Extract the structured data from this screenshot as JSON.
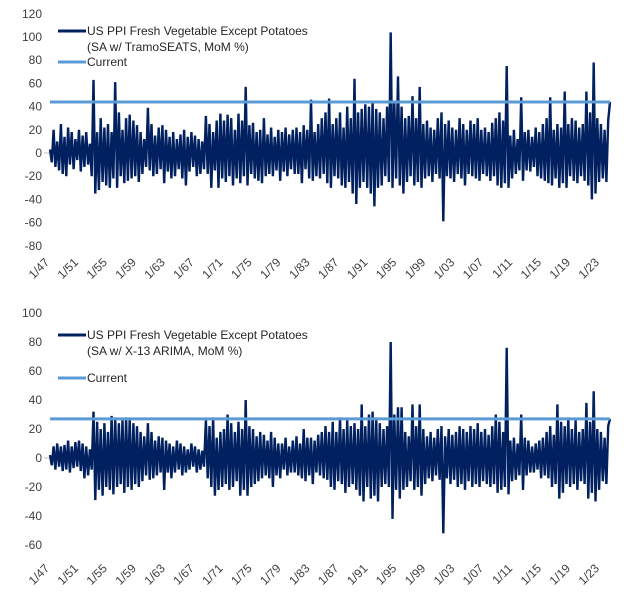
{
  "chart_data": [
    {
      "type": "line",
      "title": "",
      "xlabel": "",
      "ylabel": "",
      "ylim": [
        -80,
        120
      ],
      "yticks": [
        "120",
        "100",
        "80",
        "60",
        "40",
        "20",
        "0",
        "-20",
        "-40",
        "-60",
        "-80"
      ],
      "xticks": [
        "1/47",
        "1/51",
        "1/55",
        "1/59",
        "1/63",
        "1/67",
        "1/71",
        "1/75",
        "1/79",
        "1/83",
        "1/87",
        "1/91",
        "1/95",
        "1/99",
        "1/03",
        "1/07",
        "1/11",
        "1/15",
        "1/19",
        "1/23"
      ],
      "x_range": [
        "1/47",
        "6/24"
      ],
      "grid": false,
      "legend_position": "top-left",
      "series": [
        {
          "name_line1": "US PPI Fresh Vegetable Except Potatoes",
          "name_line2": "(SA w/ TramoSEATS, MoM %)",
          "color": "#002060",
          "frequency": "quarterly (approx.)",
          "start": "1/47",
          "values": [
            3,
            -8,
            20,
            -12,
            10,
            -15,
            25,
            -18,
            14,
            -20,
            22,
            -10,
            18,
            -14,
            12,
            -6,
            20,
            -16,
            15,
            -12,
            18,
            -10,
            8,
            -20,
            63,
            -35,
            18,
            -32,
            30,
            -25,
            22,
            -28,
            25,
            -30,
            18,
            -22,
            61,
            -30,
            35,
            -20,
            20,
            -26,
            30,
            -24,
            33,
            -22,
            28,
            -20,
            24,
            -25,
            18,
            -18,
            12,
            -12,
            39,
            -15,
            25,
            -20,
            15,
            -18,
            22,
            -14,
            24,
            -26,
            20,
            -16,
            14,
            -22,
            18,
            -20,
            12,
            -14,
            16,
            -22,
            20,
            -28,
            14,
            -16,
            18,
            -12,
            15,
            -20,
            12,
            -18,
            10,
            -14,
            32,
            -18,
            25,
            -30,
            18,
            -15,
            28,
            -30,
            34,
            -22,
            28,
            -25,
            33,
            -20,
            30,
            -28,
            20,
            -22,
            34,
            -26,
            28,
            -20,
            57,
            -28,
            24,
            -18,
            26,
            -22,
            18,
            -24,
            20,
            -26,
            30,
            -20,
            16,
            -18,
            22,
            -20,
            14,
            -15,
            20,
            -24,
            18,
            -16,
            22,
            -20,
            16,
            -14,
            20,
            -18,
            22,
            -18,
            18,
            -26,
            24,
            -14,
            20,
            -22,
            46,
            -24,
            18,
            -20,
            25,
            -22,
            30,
            -18,
            35,
            -26,
            47,
            -30,
            25,
            -20,
            30,
            -22,
            35,
            -28,
            22,
            -30,
            40,
            -25,
            30,
            -35,
            64,
            -44,
            35,
            -30,
            38,
            -25,
            42,
            -30,
            40,
            -35,
            45,
            -46,
            38,
            -30,
            35,
            -28,
            30,
            -20,
            40,
            -25,
            104,
            -30,
            45,
            -22,
            66,
            -28,
            40,
            -35,
            30,
            -25,
            32,
            -20,
            49,
            -28,
            30,
            -25,
            57,
            -30,
            25,
            -22,
            28,
            -20,
            22,
            -25,
            20,
            -18,
            30,
            -22,
            35,
            -59,
            25,
            -20,
            28,
            -22,
            22,
            -25,
            20,
            -18,
            30,
            -22,
            25,
            -28,
            20,
            -18,
            28,
            -20,
            25,
            -22,
            30,
            -24,
            20,
            -18,
            22,
            -20,
            18,
            -24,
            26,
            -20,
            30,
            -28,
            35,
            -30,
            28,
            -26,
            75,
            -30,
            15,
            -22,
            20,
            -18,
            12,
            -15,
            48,
            -24,
            18,
            -15,
            20,
            -16,
            14,
            -12,
            22,
            -20,
            18,
            -22,
            25,
            -24,
            30,
            -26,
            48,
            -28,
            20,
            -22,
            25,
            -30,
            22,
            -26,
            53,
            -30,
            25,
            -20,
            30,
            -24,
            28,
            -26,
            22,
            -20,
            25,
            -24,
            53,
            -28,
            35,
            -40,
            78,
            -35,
            30,
            -25,
            25,
            -22,
            20,
            -25,
            28,
            44
          ]
        },
        {
          "name": "Current",
          "color": "#5b9bd5",
          "value": 44
        }
      ]
    },
    {
      "type": "line",
      "title": "",
      "xlabel": "",
      "ylabel": "",
      "ylim": [
        -60,
        100
      ],
      "yticks": [
        "100",
        "80",
        "60",
        "40",
        "20",
        "0",
        "-20",
        "-40",
        "-60"
      ],
      "xticks": [
        "1/47",
        "1/51",
        "1/55",
        "1/59",
        "1/63",
        "1/67",
        "1/71",
        "1/75",
        "1/79",
        "1/83",
        "1/87",
        "1/91",
        "1/95",
        "1/99",
        "1/03",
        "1/07",
        "1/11",
        "1/15",
        "1/19",
        "1/23"
      ],
      "x_range": [
        "1/47",
        "6/24"
      ],
      "grid": false,
      "legend_position": "top-left",
      "series": [
        {
          "name_line1": "US PPI Fresh Vegetable Except Potatoes",
          "name_line2": "(SA w/ X-13 ARIMA, MoM %)",
          "color": "#002060",
          "frequency": "quarterly (approx.)",
          "start": "1/47",
          "values": [
            2,
            -5,
            8,
            -8,
            10,
            -6,
            8,
            -9,
            9,
            -8,
            12,
            -10,
            8,
            -7,
            11,
            -6,
            12,
            -9,
            10,
            -14,
            8,
            -12,
            6,
            -8,
            32,
            -29,
            25,
            -22,
            20,
            -26,
            24,
            -20,
            18,
            -22,
            29,
            -25,
            28,
            -20,
            24,
            -18,
            26,
            -24,
            28,
            -20,
            27,
            -22,
            24,
            -18,
            22,
            -20,
            18,
            -16,
            15,
            -12,
            24,
            -15,
            18,
            -14,
            12,
            -12,
            15,
            -10,
            14,
            -22,
            12,
            -10,
            10,
            -14,
            8,
            -10,
            12,
            -8,
            10,
            -12,
            8,
            -10,
            6,
            -8,
            10,
            -6,
            8,
            -10,
            6,
            -8,
            5,
            -6,
            26,
            -14,
            22,
            -20,
            28,
            -26,
            14,
            -22,
            18,
            -20,
            20,
            -18,
            30,
            -22,
            24,
            -20,
            18,
            -16,
            25,
            -26,
            20,
            -22,
            40,
            -26,
            22,
            -20,
            20,
            -18,
            15,
            -16,
            18,
            -14,
            16,
            -12,
            12,
            -14,
            18,
            -20,
            14,
            -12,
            10,
            -14,
            10,
            -8,
            14,
            -12,
            8,
            -10,
            12,
            -10,
            15,
            -12,
            10,
            -14,
            20,
            -16,
            14,
            -12,
            14,
            -18,
            12,
            -10,
            16,
            -12,
            18,
            -14,
            22,
            -15,
            18,
            -20,
            25,
            -22,
            18,
            -16,
            28,
            -18,
            20,
            -24,
            26,
            -20,
            22,
            -18,
            24,
            -22,
            20,
            -26,
            37,
            -30,
            22,
            -20,
            30,
            -28,
            32,
            -26,
            28,
            -30,
            24,
            -20,
            20,
            -18,
            22,
            -20,
            80,
            -42,
            30,
            -22,
            35,
            -28,
            35,
            -22,
            18,
            -20,
            15,
            -16,
            37,
            -22,
            22,
            -20,
            37,
            -26,
            20,
            -18,
            15,
            -14,
            18,
            -16,
            14,
            -12,
            20,
            -15,
            22,
            -52,
            15,
            -14,
            20,
            -18,
            16,
            -15,
            18,
            -20,
            22,
            -18,
            20,
            -22,
            18,
            -16,
            22,
            -20,
            20,
            -18,
            24,
            -20,
            18,
            -16,
            20,
            -18,
            16,
            -20,
            22,
            -18,
            30,
            -24,
            25,
            -22,
            18,
            -20,
            76,
            -25,
            12,
            -16,
            14,
            -15,
            10,
            -12,
            30,
            -22,
            14,
            -12,
            12,
            -10,
            8,
            -10,
            10,
            -8,
            12,
            -14,
            14,
            -12,
            18,
            -14,
            22,
            -20,
            16,
            -18,
            37,
            -28,
            25,
            -24,
            22,
            -18,
            28,
            -20,
            20,
            -18,
            26,
            -22,
            18,
            -16,
            20,
            -18,
            38,
            -28,
            25,
            -24,
            46,
            -30,
            20,
            -22,
            18,
            -16,
            14,
            -18,
            22,
            27
          ]
        },
        {
          "name": "Current",
          "color": "#5b9bd5",
          "value": 27
        }
      ]
    }
  ]
}
